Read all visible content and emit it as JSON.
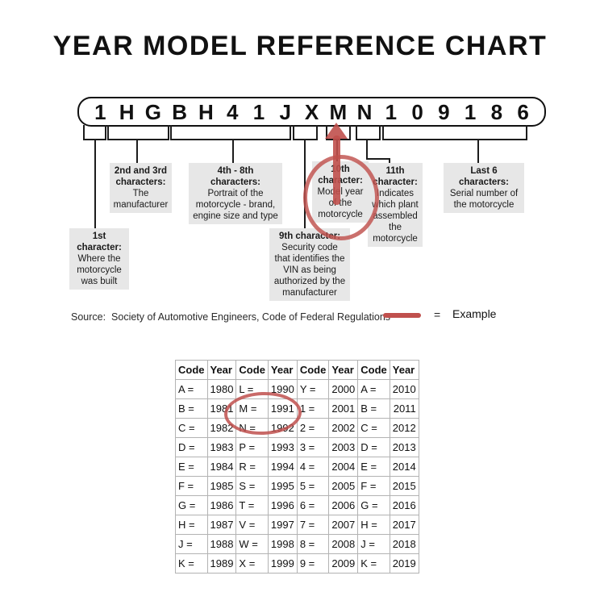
{
  "title": "YEAR MODEL REFERENCE CHART",
  "vin": {
    "characters": [
      "1",
      "H",
      "G",
      "B",
      "H",
      "4",
      "1",
      "J",
      "X",
      "M",
      "N",
      "1",
      "0",
      "9",
      "1",
      "8",
      "6"
    ]
  },
  "callouts": [
    {
      "heading": "1st\ncharacter:",
      "body": "Where the\nmotorcycle\nwas built"
    },
    {
      "heading": "2nd and 3rd\ncharacters:",
      "body": "The\nmanufacturer"
    },
    {
      "heading": "4th - 8th\ncharacters:",
      "body": "Portrait of the\nmotorcycle - brand,\nengine size and type"
    },
    {
      "heading": "9th character:",
      "body": "Security code\nthat identifies the\nVIN as being\nauthorized by the\nmanufacturer"
    },
    {
      "heading": "10th\ncharacter:",
      "body": "Model year\nof the\nmotorcycle"
    },
    {
      "heading": "11th\ncharacter:",
      "body": "Indicates\nwhich plant\nassembled\nthe\nmotorcycle"
    },
    {
      "heading": "Last 6\ncharacters:",
      "body": "Serial number of\nthe motorcycle"
    }
  ],
  "source_note": "Source:  Society of Automotive Engineers, Code of Federal Regulations",
  "legend": {
    "symbol": "=",
    "label": "Example"
  },
  "table": {
    "headers": [
      "Code",
      "Year",
      "Code",
      "Year",
      "Code",
      "Year",
      "Code",
      "Year"
    ],
    "rows": [
      [
        "A =",
        "1980",
        "L =",
        "1990",
        "Y =",
        "2000",
        "A =",
        "2010"
      ],
      [
        "B =",
        "1981",
        "M =",
        "1991",
        "1 =",
        "2001",
        "B =",
        "2011"
      ],
      [
        "C =",
        "1982",
        "N =",
        "1992",
        "2 =",
        "2002",
        "C =",
        "2012"
      ],
      [
        "D =",
        "1983",
        "P =",
        "1993",
        "3 =",
        "2003",
        "D =",
        "2013"
      ],
      [
        "E =",
        "1984",
        "R =",
        "1994",
        "4 =",
        "2004",
        "E =",
        "2014"
      ],
      [
        "F =",
        "1985",
        "S =",
        "1995",
        "5 =",
        "2005",
        "F =",
        "2015"
      ],
      [
        "G =",
        "1986",
        "T =",
        "1996",
        "6 =",
        "2006",
        "G =",
        "2016"
      ],
      [
        "H =",
        "1987",
        "V =",
        "1997",
        "7 =",
        "2007",
        "H =",
        "2017"
      ],
      [
        "J =",
        "1988",
        "W =",
        "1998",
        "8 =",
        "2008",
        "J =",
        "2018"
      ],
      [
        "K =",
        "1989",
        "X =",
        "1999",
        "9 =",
        "2009",
        "K =",
        "2019"
      ]
    ],
    "highlighted_entry": "M = 1991"
  },
  "colors": {
    "accent_red": "#c0504d",
    "callout_bg": "#e7e7e7",
    "table_border": "#b3b3b3",
    "line_black": "#1c1c1c"
  }
}
